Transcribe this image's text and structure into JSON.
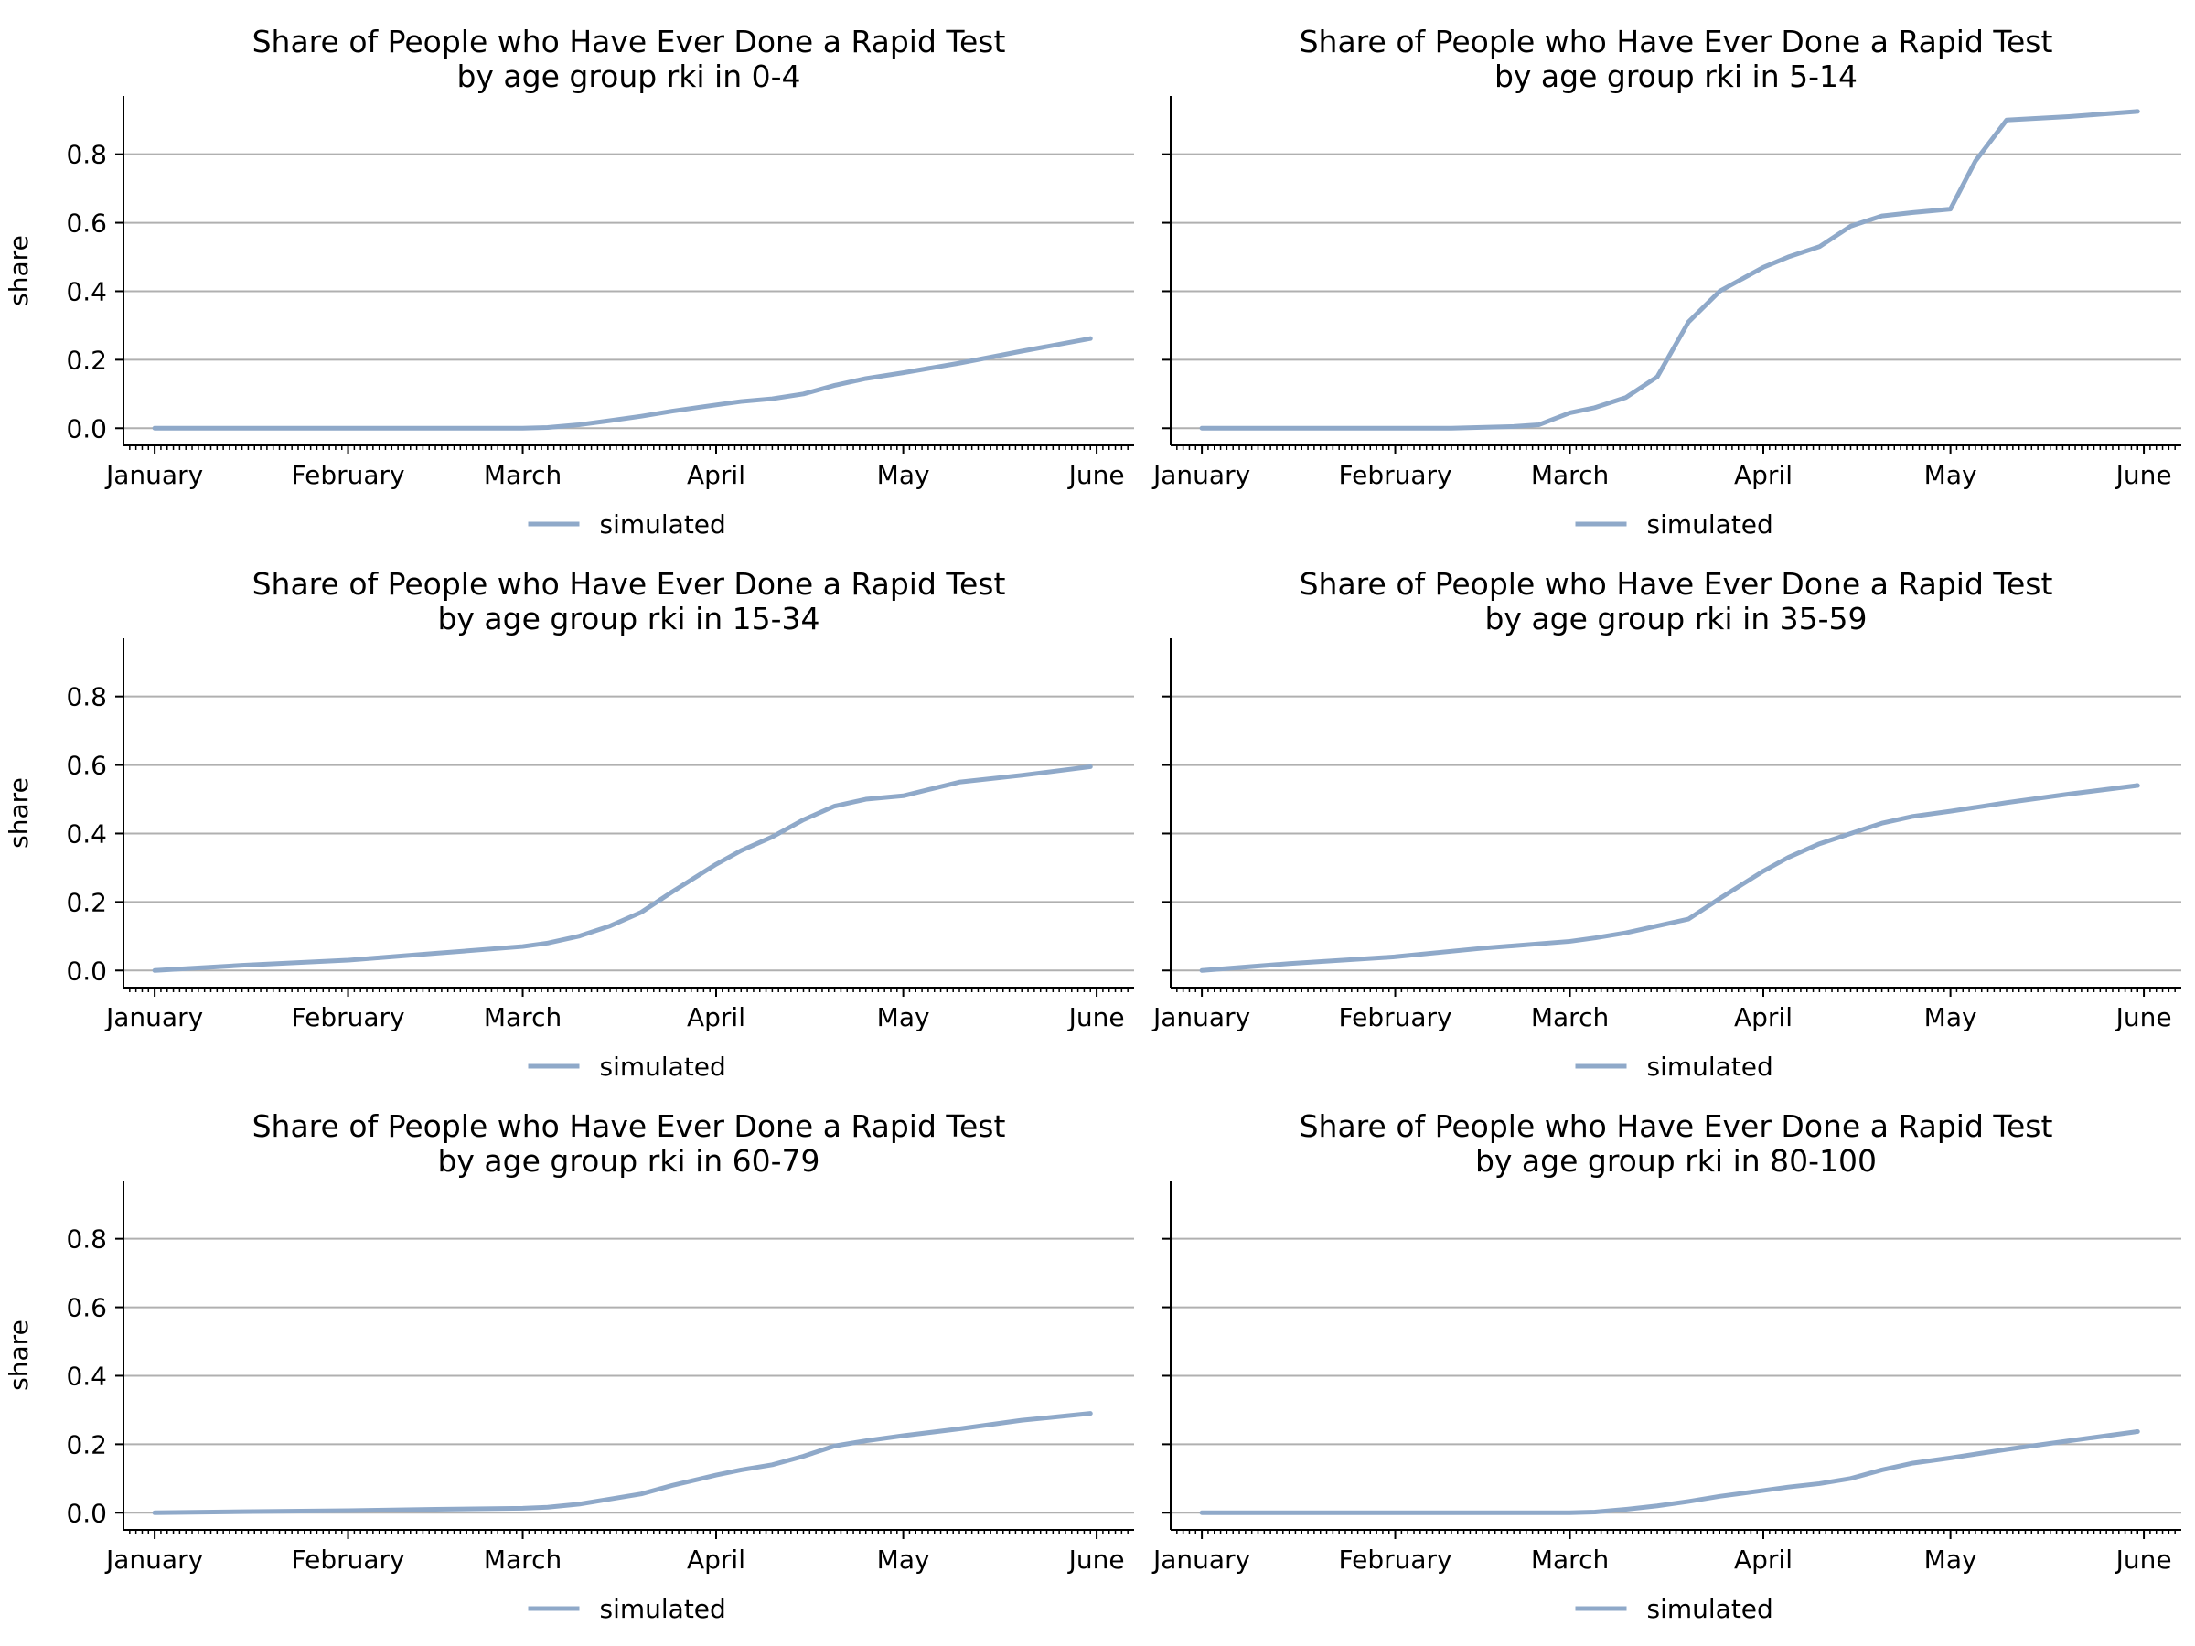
{
  "chart_data": [
    {
      "type": "line",
      "title": "Share of People who Have Ever Done a Rapid Test\nby age group rki in 0-4",
      "ylabel": "share",
      "xlabel": "",
      "x_ticks": [
        "January",
        "February",
        "March",
        "April",
        "May",
        "June"
      ],
      "y_ticks": [
        "0.0",
        "0.2",
        "0.4",
        "0.6",
        "0.8"
      ],
      "ylim": [
        -0.05,
        0.97
      ],
      "grid": "horizontal",
      "legend": "bottom-center",
      "series": [
        {
          "name": "simulated",
          "color": "#8fa9c9",
          "x": [
            "2021-01-01",
            "2021-01-15",
            "2021-02-01",
            "2021-02-15",
            "2021-03-01",
            "2021-03-05",
            "2021-03-10",
            "2021-03-15",
            "2021-03-20",
            "2021-03-25",
            "2021-04-01",
            "2021-04-05",
            "2021-04-10",
            "2021-04-15",
            "2021-04-20",
            "2021-04-25",
            "2021-05-01",
            "2021-05-10",
            "2021-05-20",
            "2021-05-31"
          ],
          "y": [
            0.0,
            0.0,
            0.0,
            0.0,
            0.0,
            0.002,
            0.01,
            0.022,
            0.035,
            0.05,
            0.068,
            0.078,
            0.086,
            0.1,
            0.125,
            0.145,
            0.162,
            0.19,
            0.225,
            0.262
          ]
        }
      ]
    },
    {
      "type": "line",
      "title": "Share of People who Have Ever Done a Rapid Test\nby age group rki in 5-14",
      "ylabel": "",
      "xlabel": "",
      "x_ticks": [
        "January",
        "February",
        "March",
        "April",
        "May",
        "June"
      ],
      "y_ticks": [
        "0.0",
        "0.2",
        "0.4",
        "0.6",
        "0.8"
      ],
      "ylim": [
        -0.05,
        0.97
      ],
      "grid": "horizontal",
      "legend": "bottom-center",
      "series": [
        {
          "name": "simulated",
          "color": "#8fa9c9",
          "x": [
            "2021-01-01",
            "2021-01-15",
            "2021-02-01",
            "2021-02-10",
            "2021-02-20",
            "2021-02-24",
            "2021-03-01",
            "2021-03-05",
            "2021-03-10",
            "2021-03-15",
            "2021-03-20",
            "2021-03-25",
            "2021-04-01",
            "2021-04-05",
            "2021-04-10",
            "2021-04-15",
            "2021-04-20",
            "2021-04-25",
            "2021-05-01",
            "2021-05-05",
            "2021-05-10",
            "2021-05-20",
            "2021-05-31"
          ],
          "y": [
            0.0,
            0.0,
            0.0,
            0.0,
            0.005,
            0.01,
            0.045,
            0.06,
            0.09,
            0.15,
            0.31,
            0.4,
            0.47,
            0.5,
            0.53,
            0.59,
            0.62,
            0.63,
            0.64,
            0.78,
            0.9,
            0.91,
            0.925
          ]
        }
      ]
    },
    {
      "type": "line",
      "title": "Share of People who Have Ever Done a Rapid Test\nby age group rki in 15-34",
      "ylabel": "share",
      "xlabel": "",
      "x_ticks": [
        "January",
        "February",
        "March",
        "April",
        "May",
        "June"
      ],
      "y_ticks": [
        "0.0",
        "0.2",
        "0.4",
        "0.6",
        "0.8"
      ],
      "ylim": [
        -0.05,
        0.97
      ],
      "grid": "horizontal",
      "legend": "bottom-center",
      "series": [
        {
          "name": "simulated",
          "color": "#8fa9c9",
          "x": [
            "2021-01-01",
            "2021-01-15",
            "2021-02-01",
            "2021-02-15",
            "2021-03-01",
            "2021-03-05",
            "2021-03-10",
            "2021-03-15",
            "2021-03-20",
            "2021-03-25",
            "2021-04-01",
            "2021-04-05",
            "2021-04-10",
            "2021-04-15",
            "2021-04-20",
            "2021-04-25",
            "2021-05-01",
            "2021-05-10",
            "2021-05-20",
            "2021-05-31"
          ],
          "y": [
            0.0,
            0.015,
            0.03,
            0.05,
            0.07,
            0.08,
            0.1,
            0.13,
            0.17,
            0.23,
            0.31,
            0.35,
            0.39,
            0.44,
            0.48,
            0.5,
            0.51,
            0.55,
            0.57,
            0.595
          ]
        }
      ]
    },
    {
      "type": "line",
      "title": "Share of People who Have Ever Done a Rapid Test\nby age group rki in 35-59",
      "ylabel": "",
      "xlabel": "",
      "x_ticks": [
        "January",
        "February",
        "March",
        "April",
        "May",
        "June"
      ],
      "y_ticks": [
        "0.0",
        "0.2",
        "0.4",
        "0.6",
        "0.8"
      ],
      "ylim": [
        -0.05,
        0.97
      ],
      "grid": "horizontal",
      "legend": "bottom-center",
      "series": [
        {
          "name": "simulated",
          "color": "#8fa9c9",
          "x": [
            "2021-01-01",
            "2021-01-15",
            "2021-02-01",
            "2021-02-15",
            "2021-03-01",
            "2021-03-05",
            "2021-03-10",
            "2021-03-15",
            "2021-03-20",
            "2021-03-25",
            "2021-04-01",
            "2021-04-05",
            "2021-04-10",
            "2021-04-15",
            "2021-04-20",
            "2021-04-25",
            "2021-05-01",
            "2021-05-10",
            "2021-05-20",
            "2021-05-31"
          ],
          "y": [
            0.0,
            0.02,
            0.04,
            0.065,
            0.085,
            0.095,
            0.11,
            0.13,
            0.15,
            0.21,
            0.29,
            0.33,
            0.37,
            0.4,
            0.43,
            0.45,
            0.465,
            0.49,
            0.515,
            0.54
          ]
        }
      ]
    },
    {
      "type": "line",
      "title": "Share of People who Have Ever Done a Rapid Test\nby age group rki in 60-79",
      "ylabel": "share",
      "xlabel": "",
      "x_ticks": [
        "January",
        "February",
        "March",
        "April",
        "May",
        "June"
      ],
      "y_ticks": [
        "0.0",
        "0.2",
        "0.4",
        "0.6",
        "0.8"
      ],
      "ylim": [
        -0.05,
        0.97
      ],
      "grid": "horizontal",
      "legend": "bottom-center",
      "series": [
        {
          "name": "simulated",
          "color": "#8fa9c9",
          "x": [
            "2021-01-01",
            "2021-01-15",
            "2021-02-01",
            "2021-02-15",
            "2021-03-01",
            "2021-03-05",
            "2021-03-10",
            "2021-03-15",
            "2021-03-20",
            "2021-03-25",
            "2021-04-01",
            "2021-04-05",
            "2021-04-10",
            "2021-04-15",
            "2021-04-20",
            "2021-04-25",
            "2021-05-01",
            "2021-05-10",
            "2021-05-20",
            "2021-05-31"
          ],
          "y": [
            0.0,
            0.003,
            0.006,
            0.01,
            0.013,
            0.016,
            0.025,
            0.04,
            0.055,
            0.08,
            0.11,
            0.125,
            0.14,
            0.165,
            0.195,
            0.21,
            0.225,
            0.245,
            0.27,
            0.29
          ]
        }
      ]
    },
    {
      "type": "line",
      "title": "Share of People who Have Ever Done a Rapid Test\nby age group rki in 80-100",
      "ylabel": "",
      "xlabel": "",
      "x_ticks": [
        "January",
        "February",
        "March",
        "April",
        "May",
        "June"
      ],
      "y_ticks": [
        "0.0",
        "0.2",
        "0.4",
        "0.6",
        "0.8"
      ],
      "ylim": [
        -0.05,
        0.97
      ],
      "grid": "horizontal",
      "legend": "bottom-center",
      "series": [
        {
          "name": "simulated",
          "color": "#8fa9c9",
          "x": [
            "2021-01-01",
            "2021-01-15",
            "2021-02-01",
            "2021-02-15",
            "2021-03-01",
            "2021-03-05",
            "2021-03-10",
            "2021-03-15",
            "2021-03-20",
            "2021-03-25",
            "2021-04-01",
            "2021-04-05",
            "2021-04-10",
            "2021-04-15",
            "2021-04-20",
            "2021-04-25",
            "2021-05-01",
            "2021-05-10",
            "2021-05-20",
            "2021-05-31"
          ],
          "y": [
            0.0,
            0.0,
            0.0,
            0.0,
            0.0,
            0.002,
            0.01,
            0.02,
            0.033,
            0.048,
            0.065,
            0.075,
            0.085,
            0.1,
            0.125,
            0.145,
            0.16,
            0.185,
            0.21,
            0.237
          ]
        }
      ]
    }
  ]
}
